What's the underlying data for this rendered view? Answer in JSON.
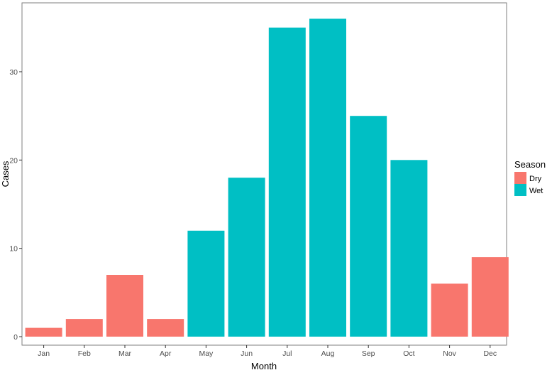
{
  "chart_data": {
    "type": "bar",
    "categories": [
      "Jan",
      "Feb",
      "Mar",
      "Apr",
      "May",
      "Jun",
      "Jul",
      "Aug",
      "Sep",
      "Oct",
      "Nov",
      "Dec"
    ],
    "values": [
      1,
      2,
      7,
      2,
      12,
      18,
      35,
      36,
      25,
      20,
      6,
      9
    ],
    "groups": [
      "Dry",
      "Dry",
      "Dry",
      "Dry",
      "Wet",
      "Wet",
      "Wet",
      "Wet",
      "Wet",
      "Wet",
      "Dry",
      "Dry"
    ],
    "series": [
      {
        "name": "Dry",
        "color": "#F8766D"
      },
      {
        "name": "Wet",
        "color": "#00BFC4"
      }
    ],
    "xlabel": "Month",
    "ylabel": "Cases",
    "ylim": [
      0,
      37.8
    ],
    "yticks": [
      0,
      10,
      20,
      30
    ],
    "legend": {
      "title": "Season",
      "position": "right"
    },
    "grid": false
  }
}
